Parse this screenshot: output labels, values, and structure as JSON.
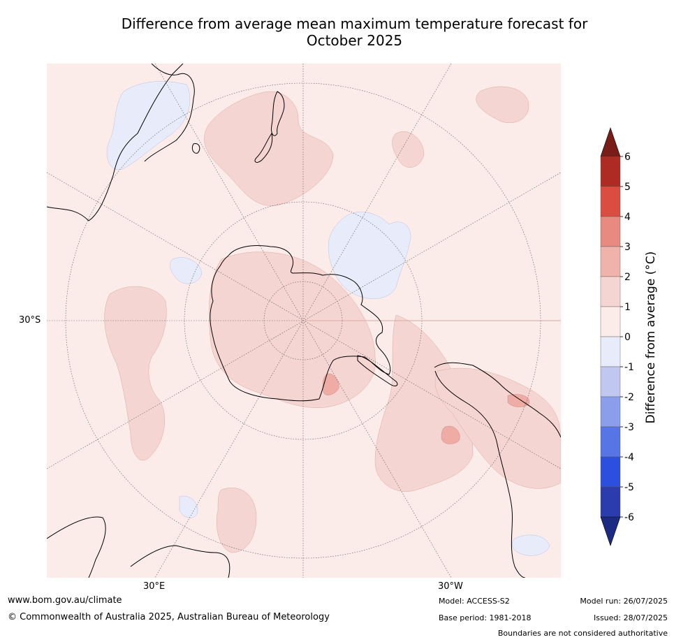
{
  "title_line1": "Difference from average mean maximum temperature forecast for",
  "title_line2": "October 2025",
  "map": {
    "projection": "south-polar-stereographic",
    "background_color": "#fbecea",
    "lon_labels": [
      "30°E",
      "30°W"
    ],
    "lat_label": "30°S"
  },
  "colorbar": {
    "label": "Difference from average (°C)",
    "ticks": [
      "6",
      "5",
      "4",
      "3",
      "2",
      "1",
      "0",
      "-1",
      "-2",
      "-3",
      "-4",
      "-5",
      "-6"
    ],
    "bins_top_to_bottom": [
      {
        "range": ">6",
        "color": "#7a1c18"
      },
      {
        "range": "5 to 6",
        "color": "#ad2b22"
      },
      {
        "range": "4 to 5",
        "color": "#db4c41"
      },
      {
        "range": "3 to 4",
        "color": "#e88a7f"
      },
      {
        "range": "2 to 3",
        "color": "#f0b3ab"
      },
      {
        "range": "1 to 2",
        "color": "#f5d5d2"
      },
      {
        "range": "0 to 1",
        "color": "#fbecea"
      },
      {
        "range": "-1 to 0",
        "color": "#e8ebfa"
      },
      {
        "range": "-2 to -1",
        "color": "#c0c8f2"
      },
      {
        "range": "-3 to -2",
        "color": "#8a9eeb"
      },
      {
        "range": "-4 to -3",
        "color": "#5875e6"
      },
      {
        "range": "-5 to -4",
        "color": "#2d4fe0"
      },
      {
        "range": "-6 to -5",
        "color": "#2a3cae"
      },
      {
        "range": "<-6",
        "color": "#1c2a84"
      }
    ]
  },
  "footer": {
    "url": "www.bom.gov.au/climate",
    "copyright": "© Commonwealth of Australia 2025, Australian Bureau of Meteorology",
    "model": "Model: ACCESS-S2",
    "base_period": "Base period: 1981-2018",
    "model_run": "Model run: 26/07/2025",
    "issued": "Issued: 28/07/2025",
    "disclaimer": "Boundaries are not considered authoritative"
  }
}
